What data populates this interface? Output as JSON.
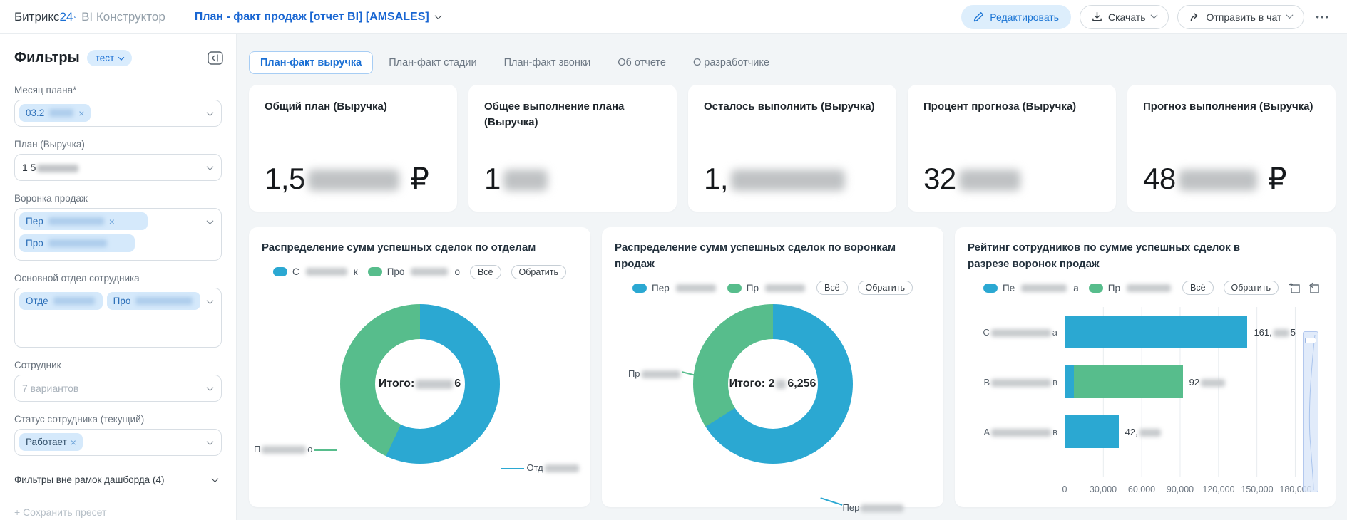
{
  "topbar": {
    "logo_brand": "Битрикс",
    "logo_number": "24",
    "logo_mark": "°",
    "logo_product": "BI Конструктор",
    "title": "План - факт продаж [отчет BI] [AMSALES]",
    "edit_button": "Редактировать",
    "download_button": "Скачать",
    "send_to_chat_button": "Отправить в чат",
    "more_menu": "•••"
  },
  "sidebar": {
    "heading": "Фильтры",
    "preset_badge": "тест",
    "filters": [
      {
        "label": "Месяц плана*",
        "chips": [
          {
            "text": "03.2",
            "remove": "×"
          }
        ]
      },
      {
        "label": "План (Выручка)",
        "value": "1 5"
      },
      {
        "label": "Воронка продаж",
        "chips": [
          {
            "text": "Пер",
            "remove": "×"
          },
          {
            "text": "Про",
            "remove": ""
          }
        ]
      },
      {
        "label": "Основной отдел сотрудника",
        "chips": [
          {
            "text": "Отде",
            "remove": ""
          },
          {
            "text": "Про",
            "remove": ""
          }
        ]
      },
      {
        "label": "Сотрудник",
        "placeholder": "7 вариантов"
      },
      {
        "label": "Статус сотрудника (текущий)",
        "chips": [
          {
            "text": "Работает",
            "remove": "×"
          }
        ]
      }
    ],
    "outside_filters_link": "Фильтры вне рамок дашборда (4)",
    "save_preset": "+ Сохранить пресет"
  },
  "tabs": [
    {
      "label": "План-факт выручка",
      "active": true
    },
    {
      "label": "План-факт стадии",
      "active": false
    },
    {
      "label": "План-факт звонки",
      "active": false
    },
    {
      "label": "Об отчете",
      "active": false
    },
    {
      "label": "О разработчике",
      "active": false
    }
  ],
  "kpi_cards": [
    {
      "title": "Общий план (Выручка)",
      "value_prefix": "1,5",
      "value_suffix": "₽"
    },
    {
      "title": "Общее выполнение плана (Выручка)",
      "value_prefix": "1",
      "value_suffix": ""
    },
    {
      "title": "Осталось выполнить (Выручка)",
      "value_prefix": "1,",
      "value_suffix": ""
    },
    {
      "title": "Процент прогноза (Выручка)",
      "value_prefix": "32",
      "value_suffix": ""
    },
    {
      "title": "Прогноз выполнения (Выручка)",
      "value_prefix": "48",
      "value_suffix": "₽"
    }
  ],
  "colors": {
    "series_blue": "#2ba8d2",
    "series_green": "#57bd8c",
    "accent_blue": "#1a6fd4"
  },
  "charts": {
    "dept_donut": {
      "type": "pie",
      "title": "Распределение сумм успешных сделок по отделам",
      "legend": [
        {
          "label_prefix": "С",
          "label_suffix": "к",
          "color": "#2ba8d2"
        },
        {
          "label_prefix": "Про",
          "label_suffix": "о",
          "color": "#57bd8c"
        }
      ],
      "buttons": [
        "Всё",
        "Обратить"
      ],
      "total_prefix": "Итого: ",
      "total_suffix": "6",
      "segments": [
        {
          "color": "#2ba8d2",
          "percent": 57
        },
        {
          "color": "#57bd8c",
          "percent": 43
        }
      ],
      "callout_left_prefix": "П",
      "callout_left_suffix": "о",
      "callout_right_prefix": "Отд",
      "callout_right_suffix": ""
    },
    "funnel_donut": {
      "type": "pie",
      "title": "Распределение сумм успешных сделок по воронкам продаж",
      "legend": [
        {
          "label_prefix": "Пер",
          "label_suffix": "",
          "color": "#2ba8d2"
        },
        {
          "label_prefix": "Пр",
          "label_suffix": "",
          "color": "#57bd8c"
        }
      ],
      "buttons": [
        "Всё",
        "Обратить"
      ],
      "total_prefix": "Итого: 2",
      "total_suffix": "6,256",
      "segments": [
        {
          "color": "#2ba8d2",
          "percent": 66
        },
        {
          "color": "#57bd8c",
          "percent": 34
        }
      ],
      "callout_left_prefix": "Пр",
      "callout_left_suffix": "",
      "callout_right_prefix": "Пер",
      "callout_right_suffix": ""
    },
    "ranking_bar": {
      "type": "bar",
      "title": "Рейтинг сотрудников по сумме успешных сделок в разрезе воронок продаж",
      "legend": [
        {
          "label_prefix": "Пе",
          "label_suffix": "а",
          "color": "#2ba8d2"
        },
        {
          "label_prefix": "Пр",
          "label_suffix": "",
          "color": "#57bd8c"
        }
      ],
      "buttons": [
        "Всё",
        "Обратить"
      ],
      "axis_max": 180000,
      "x_ticks": [
        "0",
        "30,000",
        "60,000",
        "90,000",
        "120,000",
        "150,000",
        "180,000"
      ],
      "bars": [
        {
          "category_prefix": "С",
          "category_suffix": "а",
          "label_prefix": "161,",
          "label_suffix": "5",
          "segments": [
            {
              "color": "#2ba8d2",
              "value": 161000
            }
          ]
        },
        {
          "category_prefix": "В",
          "category_suffix": "в",
          "label_prefix": "92",
          "label_suffix": "",
          "segments": [
            {
              "color": "#2ba8d2",
              "value": 7000
            },
            {
              "color": "#57bd8c",
              "value": 85000
            }
          ]
        },
        {
          "category_prefix": "А",
          "category_suffix": "в",
          "label_prefix": "42,",
          "label_suffix": "",
          "segments": [
            {
              "color": "#2ba8d2",
              "value": 42000
            }
          ]
        }
      ]
    }
  }
}
